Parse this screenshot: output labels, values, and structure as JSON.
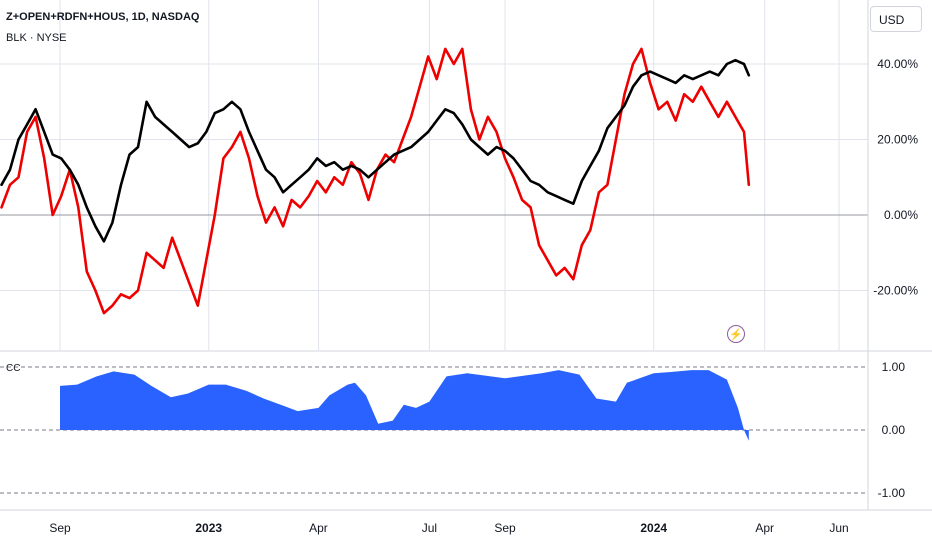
{
  "legend": {
    "title": "Z+OPEN+RDFN+HOUS, 1D, NASDAQ",
    "compare": "BLK · NYSE"
  },
  "currency": "USD",
  "indicator_label": "CC",
  "event_icon": "flash-icon",
  "colors": {
    "main": "#000000",
    "compare": "#ee0000",
    "cc_fill": "#2962ff",
    "grid": "#e0e3eb",
    "axis_text": "#131722"
  },
  "chart_data": [
    {
      "type": "line",
      "y_axis_format": "percent",
      "ylim": [
        -32,
        52
      ],
      "y_ticks": [
        {
          "value": 40,
          "label": "40.00%"
        },
        {
          "value": 20,
          "label": "20.00%"
        },
        {
          "value": 0,
          "label": "0.00%"
        },
        {
          "value": -20,
          "label": "-20.00%"
        }
      ],
      "x_ticks": [
        {
          "date": "2022-09-01",
          "label": "Sep",
          "bold": false
        },
        {
          "date": "2023-01-01",
          "label": "2023",
          "bold": true
        },
        {
          "date": "2023-04-01",
          "label": "Apr",
          "bold": false
        },
        {
          "date": "2023-07-01",
          "label": "Jul",
          "bold": false
        },
        {
          "date": "2023-09-01",
          "label": "Sep",
          "bold": false
        },
        {
          "date": "2024-01-01",
          "label": "2024",
          "bold": true
        },
        {
          "date": "2024-04-01",
          "label": "Apr",
          "bold": false
        },
        {
          "date": "2024-06-01",
          "label": "Jun",
          "bold": false
        }
      ],
      "series": [
        {
          "name": "Z+OPEN+RDFN+HOUS",
          "color": "#ee0000",
          "points": [
            [
              "2022-07-15",
              2
            ],
            [
              "2022-07-22",
              8
            ],
            [
              "2022-07-29",
              10
            ],
            [
              "2022-08-05",
              22
            ],
            [
              "2022-08-12",
              26
            ],
            [
              "2022-08-19",
              15
            ],
            [
              "2022-08-26",
              0
            ],
            [
              "2022-09-02",
              5
            ],
            [
              "2022-09-09",
              12
            ],
            [
              "2022-09-16",
              2
            ],
            [
              "2022-09-23",
              -15
            ],
            [
              "2022-09-30",
              -20
            ],
            [
              "2022-10-07",
              -26
            ],
            [
              "2022-10-14",
              -24
            ],
            [
              "2022-10-21",
              -21
            ],
            [
              "2022-10-28",
              -22
            ],
            [
              "2022-11-04",
              -20
            ],
            [
              "2022-11-11",
              -10
            ],
            [
              "2022-11-18",
              -12
            ],
            [
              "2022-11-25",
              -14
            ],
            [
              "2022-12-02",
              -6
            ],
            [
              "2022-12-09",
              -12
            ],
            [
              "2022-12-16",
              -18
            ],
            [
              "2022-12-23",
              -24
            ],
            [
              "2022-12-30",
              -12
            ],
            [
              "2023-01-06",
              0
            ],
            [
              "2023-01-13",
              15
            ],
            [
              "2023-01-20",
              18
            ],
            [
              "2023-01-27",
              22
            ],
            [
              "2023-02-03",
              15
            ],
            [
              "2023-02-10",
              5
            ],
            [
              "2023-02-17",
              -2
            ],
            [
              "2023-02-24",
              2
            ],
            [
              "2023-03-03",
              -3
            ],
            [
              "2023-03-10",
              4
            ],
            [
              "2023-03-17",
              2
            ],
            [
              "2023-03-24",
              5
            ],
            [
              "2023-03-31",
              9
            ],
            [
              "2023-04-07",
              6
            ],
            [
              "2023-04-14",
              10
            ],
            [
              "2023-04-21",
              8
            ],
            [
              "2023-04-28",
              14
            ],
            [
              "2023-05-05",
              11
            ],
            [
              "2023-05-12",
              4
            ],
            [
              "2023-05-19",
              12
            ],
            [
              "2023-05-26",
              16
            ],
            [
              "2023-06-02",
              14
            ],
            [
              "2023-06-09",
              20
            ],
            [
              "2023-06-16",
              26
            ],
            [
              "2023-06-23",
              34
            ],
            [
              "2023-06-30",
              42
            ],
            [
              "2023-07-07",
              36
            ],
            [
              "2023-07-14",
              44
            ],
            [
              "2023-07-21",
              40
            ],
            [
              "2023-07-28",
              44
            ],
            [
              "2023-08-04",
              28
            ],
            [
              "2023-08-11",
              20
            ],
            [
              "2023-08-18",
              26
            ],
            [
              "2023-08-25",
              22
            ],
            [
              "2023-09-01",
              15
            ],
            [
              "2023-09-08",
              10
            ],
            [
              "2023-09-15",
              4
            ],
            [
              "2023-09-22",
              2
            ],
            [
              "2023-09-29",
              -8
            ],
            [
              "2023-10-06",
              -12
            ],
            [
              "2023-10-13",
              -16
            ],
            [
              "2023-10-20",
              -14
            ],
            [
              "2023-10-27",
              -17
            ],
            [
              "2023-11-03",
              -8
            ],
            [
              "2023-11-10",
              -4
            ],
            [
              "2023-11-17",
              6
            ],
            [
              "2023-11-24",
              8
            ],
            [
              "2023-12-01",
              20
            ],
            [
              "2023-12-08",
              32
            ],
            [
              "2023-12-15",
              40
            ],
            [
              "2023-12-22",
              44
            ],
            [
              "2023-12-29",
              35
            ],
            [
              "2024-01-05",
              28
            ],
            [
              "2024-01-12",
              30
            ],
            [
              "2024-01-19",
              25
            ],
            [
              "2024-01-26",
              32
            ],
            [
              "2024-02-02",
              30
            ],
            [
              "2024-02-09",
              34
            ],
            [
              "2024-02-16",
              30
            ],
            [
              "2024-02-23",
              26
            ],
            [
              "2024-03-01",
              30
            ],
            [
              "2024-03-08",
              26
            ],
            [
              "2024-03-15",
              22
            ],
            [
              "2024-03-19",
              8
            ]
          ]
        },
        {
          "name": "BLK",
          "color": "#000000",
          "points": [
            [
              "2022-07-15",
              8
            ],
            [
              "2022-07-22",
              12
            ],
            [
              "2022-07-29",
              20
            ],
            [
              "2022-08-05",
              24
            ],
            [
              "2022-08-12",
              28
            ],
            [
              "2022-08-19",
              22
            ],
            [
              "2022-08-26",
              16
            ],
            [
              "2022-09-02",
              15
            ],
            [
              "2022-09-09",
              12
            ],
            [
              "2022-09-16",
              8
            ],
            [
              "2022-09-23",
              2
            ],
            [
              "2022-09-30",
              -3
            ],
            [
              "2022-10-07",
              -7
            ],
            [
              "2022-10-14",
              -2
            ],
            [
              "2022-10-21",
              8
            ],
            [
              "2022-10-28",
              16
            ],
            [
              "2022-11-04",
              18
            ],
            [
              "2022-11-11",
              30
            ],
            [
              "2022-11-18",
              26
            ],
            [
              "2022-11-25",
              24
            ],
            [
              "2022-12-02",
              22
            ],
            [
              "2022-12-09",
              20
            ],
            [
              "2022-12-16",
              18
            ],
            [
              "2022-12-23",
              19
            ],
            [
              "2022-12-30",
              22
            ],
            [
              "2023-01-06",
              27
            ],
            [
              "2023-01-13",
              28
            ],
            [
              "2023-01-20",
              30
            ],
            [
              "2023-01-27",
              28
            ],
            [
              "2023-02-03",
              22
            ],
            [
              "2023-02-10",
              17
            ],
            [
              "2023-02-17",
              12
            ],
            [
              "2023-02-24",
              10
            ],
            [
              "2023-03-03",
              6
            ],
            [
              "2023-03-10",
              8
            ],
            [
              "2023-03-17",
              10
            ],
            [
              "2023-03-24",
              12
            ],
            [
              "2023-03-31",
              15
            ],
            [
              "2023-04-07",
              13
            ],
            [
              "2023-04-14",
              14
            ],
            [
              "2023-04-21",
              12
            ],
            [
              "2023-04-28",
              13
            ],
            [
              "2023-05-05",
              12
            ],
            [
              "2023-05-12",
              10
            ],
            [
              "2023-05-19",
              12
            ],
            [
              "2023-05-26",
              14
            ],
            [
              "2023-06-02",
              16
            ],
            [
              "2023-06-09",
              17
            ],
            [
              "2023-06-16",
              18
            ],
            [
              "2023-06-23",
              20
            ],
            [
              "2023-06-30",
              22
            ],
            [
              "2023-07-07",
              25
            ],
            [
              "2023-07-14",
              28
            ],
            [
              "2023-07-21",
              27
            ],
            [
              "2023-07-28",
              24
            ],
            [
              "2023-08-04",
              20
            ],
            [
              "2023-08-11",
              18
            ],
            [
              "2023-08-18",
              16
            ],
            [
              "2023-08-25",
              18
            ],
            [
              "2023-09-01",
              17
            ],
            [
              "2023-09-08",
              15
            ],
            [
              "2023-09-15",
              12
            ],
            [
              "2023-09-22",
              9
            ],
            [
              "2023-09-29",
              8
            ],
            [
              "2023-10-06",
              6
            ],
            [
              "2023-10-13",
              5
            ],
            [
              "2023-10-20",
              4
            ],
            [
              "2023-10-27",
              3
            ],
            [
              "2023-11-03",
              9
            ],
            [
              "2023-11-10",
              13
            ],
            [
              "2023-11-17",
              17
            ],
            [
              "2023-11-24",
              23
            ],
            [
              "2023-12-01",
              26
            ],
            [
              "2023-12-08",
              29
            ],
            [
              "2023-12-15",
              34
            ],
            [
              "2023-12-22",
              37
            ],
            [
              "2023-12-29",
              38
            ],
            [
              "2024-01-05",
              37
            ],
            [
              "2024-01-12",
              36
            ],
            [
              "2024-01-19",
              35
            ],
            [
              "2024-01-26",
              37
            ],
            [
              "2024-02-02",
              36
            ],
            [
              "2024-02-09",
              37
            ],
            [
              "2024-02-16",
              38
            ],
            [
              "2024-02-23",
              37
            ],
            [
              "2024-03-01",
              40
            ],
            [
              "2024-03-08",
              41
            ],
            [
              "2024-03-15",
              40
            ],
            [
              "2024-03-19",
              37
            ]
          ]
        }
      ]
    },
    {
      "type": "area",
      "title": "CC",
      "ylim": [
        -1.1,
        1.1
      ],
      "y_ticks": [
        {
          "value": 1,
          "label": "1.00"
        },
        {
          "value": 0,
          "label": "0.00"
        },
        {
          "value": -1,
          "label": "-1.00"
        }
      ],
      "series": [
        {
          "name": "CC",
          "color": "#2962ff",
          "points": [
            [
              "2022-09-01",
              0.7
            ],
            [
              "2022-09-15",
              0.72
            ],
            [
              "2022-10-01",
              0.85
            ],
            [
              "2022-10-15",
              0.93
            ],
            [
              "2022-11-01",
              0.88
            ],
            [
              "2022-11-15",
              0.7
            ],
            [
              "2022-12-01",
              0.52
            ],
            [
              "2022-12-15",
              0.58
            ],
            [
              "2023-01-01",
              0.72
            ],
            [
              "2023-01-15",
              0.72
            ],
            [
              "2023-02-01",
              0.62
            ],
            [
              "2023-02-15",
              0.5
            ],
            [
              "2023-03-01",
              0.4
            ],
            [
              "2023-03-15",
              0.3
            ],
            [
              "2023-04-01",
              0.35
            ],
            [
              "2023-04-10",
              0.55
            ],
            [
              "2023-04-25",
              0.72
            ],
            [
              "2023-05-01",
              0.75
            ],
            [
              "2023-05-10",
              0.55
            ],
            [
              "2023-05-20",
              0.1
            ],
            [
              "2023-06-01",
              0.15
            ],
            [
              "2023-06-10",
              0.4
            ],
            [
              "2023-06-20",
              0.35
            ],
            [
              "2023-07-01",
              0.45
            ],
            [
              "2023-07-15",
              0.85
            ],
            [
              "2023-08-01",
              0.9
            ],
            [
              "2023-09-01",
              0.82
            ],
            [
              "2023-10-01",
              0.9
            ],
            [
              "2023-10-15",
              0.95
            ],
            [
              "2023-11-01",
              0.88
            ],
            [
              "2023-11-15",
              0.5
            ],
            [
              "2023-12-01",
              0.45
            ],
            [
              "2023-12-10",
              0.75
            ],
            [
              "2024-01-01",
              0.9
            ],
            [
              "2024-01-15",
              0.92
            ],
            [
              "2024-02-01",
              0.95
            ],
            [
              "2024-02-15",
              0.95
            ],
            [
              "2024-03-01",
              0.8
            ],
            [
              "2024-03-10",
              0.35
            ],
            [
              "2024-03-15",
              0.0
            ],
            [
              "2024-03-19",
              -0.17
            ]
          ]
        }
      ]
    }
  ]
}
